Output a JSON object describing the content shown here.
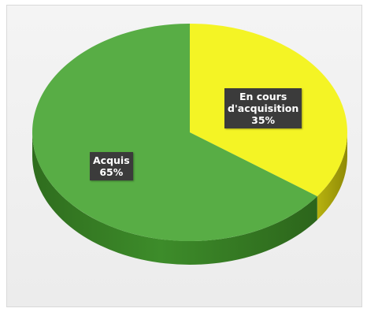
{
  "chart_data": {
    "type": "pie",
    "title": "",
    "slices": [
      {
        "name": "En cours d'acquisition",
        "value": 35,
        "value_label": "35%",
        "color": "#f4f425",
        "label_lines": [
          "En cours",
          "d'acquisition",
          "35%"
        ]
      },
      {
        "name": "Acquis",
        "value": 65,
        "value_label": "65%",
        "color": "#58ad45",
        "label_lines": [
          "Acquis",
          "65%"
        ]
      }
    ],
    "start_angle": "12 o'clock",
    "direction": "clockwise",
    "style": "3D",
    "legend": "none",
    "label_style": "dark box with white bold text"
  }
}
